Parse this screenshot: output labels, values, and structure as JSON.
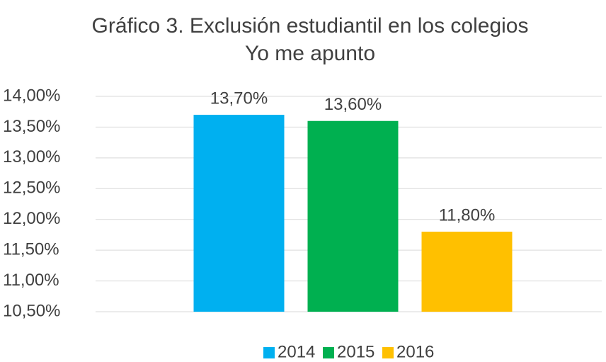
{
  "chart_data": {
    "type": "bar",
    "title": "Gráfico 3. Exclusión estudiantil en los colegios",
    "subtitle": "Yo me apunto",
    "categories": [
      null
    ],
    "series": [
      {
        "name": "2014",
        "color": "#00b0f0",
        "values": [
          13.7
        ],
        "value_labels": [
          "13,70%"
        ]
      },
      {
        "name": "2015",
        "color": "#00b050",
        "values": [
          13.6
        ],
        "value_labels": [
          "13,60%"
        ]
      },
      {
        "name": "2016",
        "color": "#ffc000",
        "values": [
          11.8
        ],
        "value_labels": [
          "11,80%"
        ]
      }
    ],
    "ylim": [
      10.5,
      14
    ],
    "yticks": [
      {
        "value": 10.5,
        "label": "10,50%"
      },
      {
        "value": 11,
        "label": "11,00%"
      },
      {
        "value": 11.5,
        "label": "11,50%"
      },
      {
        "value": 12,
        "label": "12,00%"
      },
      {
        "value": 12.5,
        "label": "12,50%"
      },
      {
        "value": 13,
        "label": "13,00%"
      },
      {
        "value": 13.5,
        "label": "13,50%"
      },
      {
        "value": 14,
        "label": "14,00%"
      }
    ],
    "grid": true,
    "legend": "bottom"
  }
}
